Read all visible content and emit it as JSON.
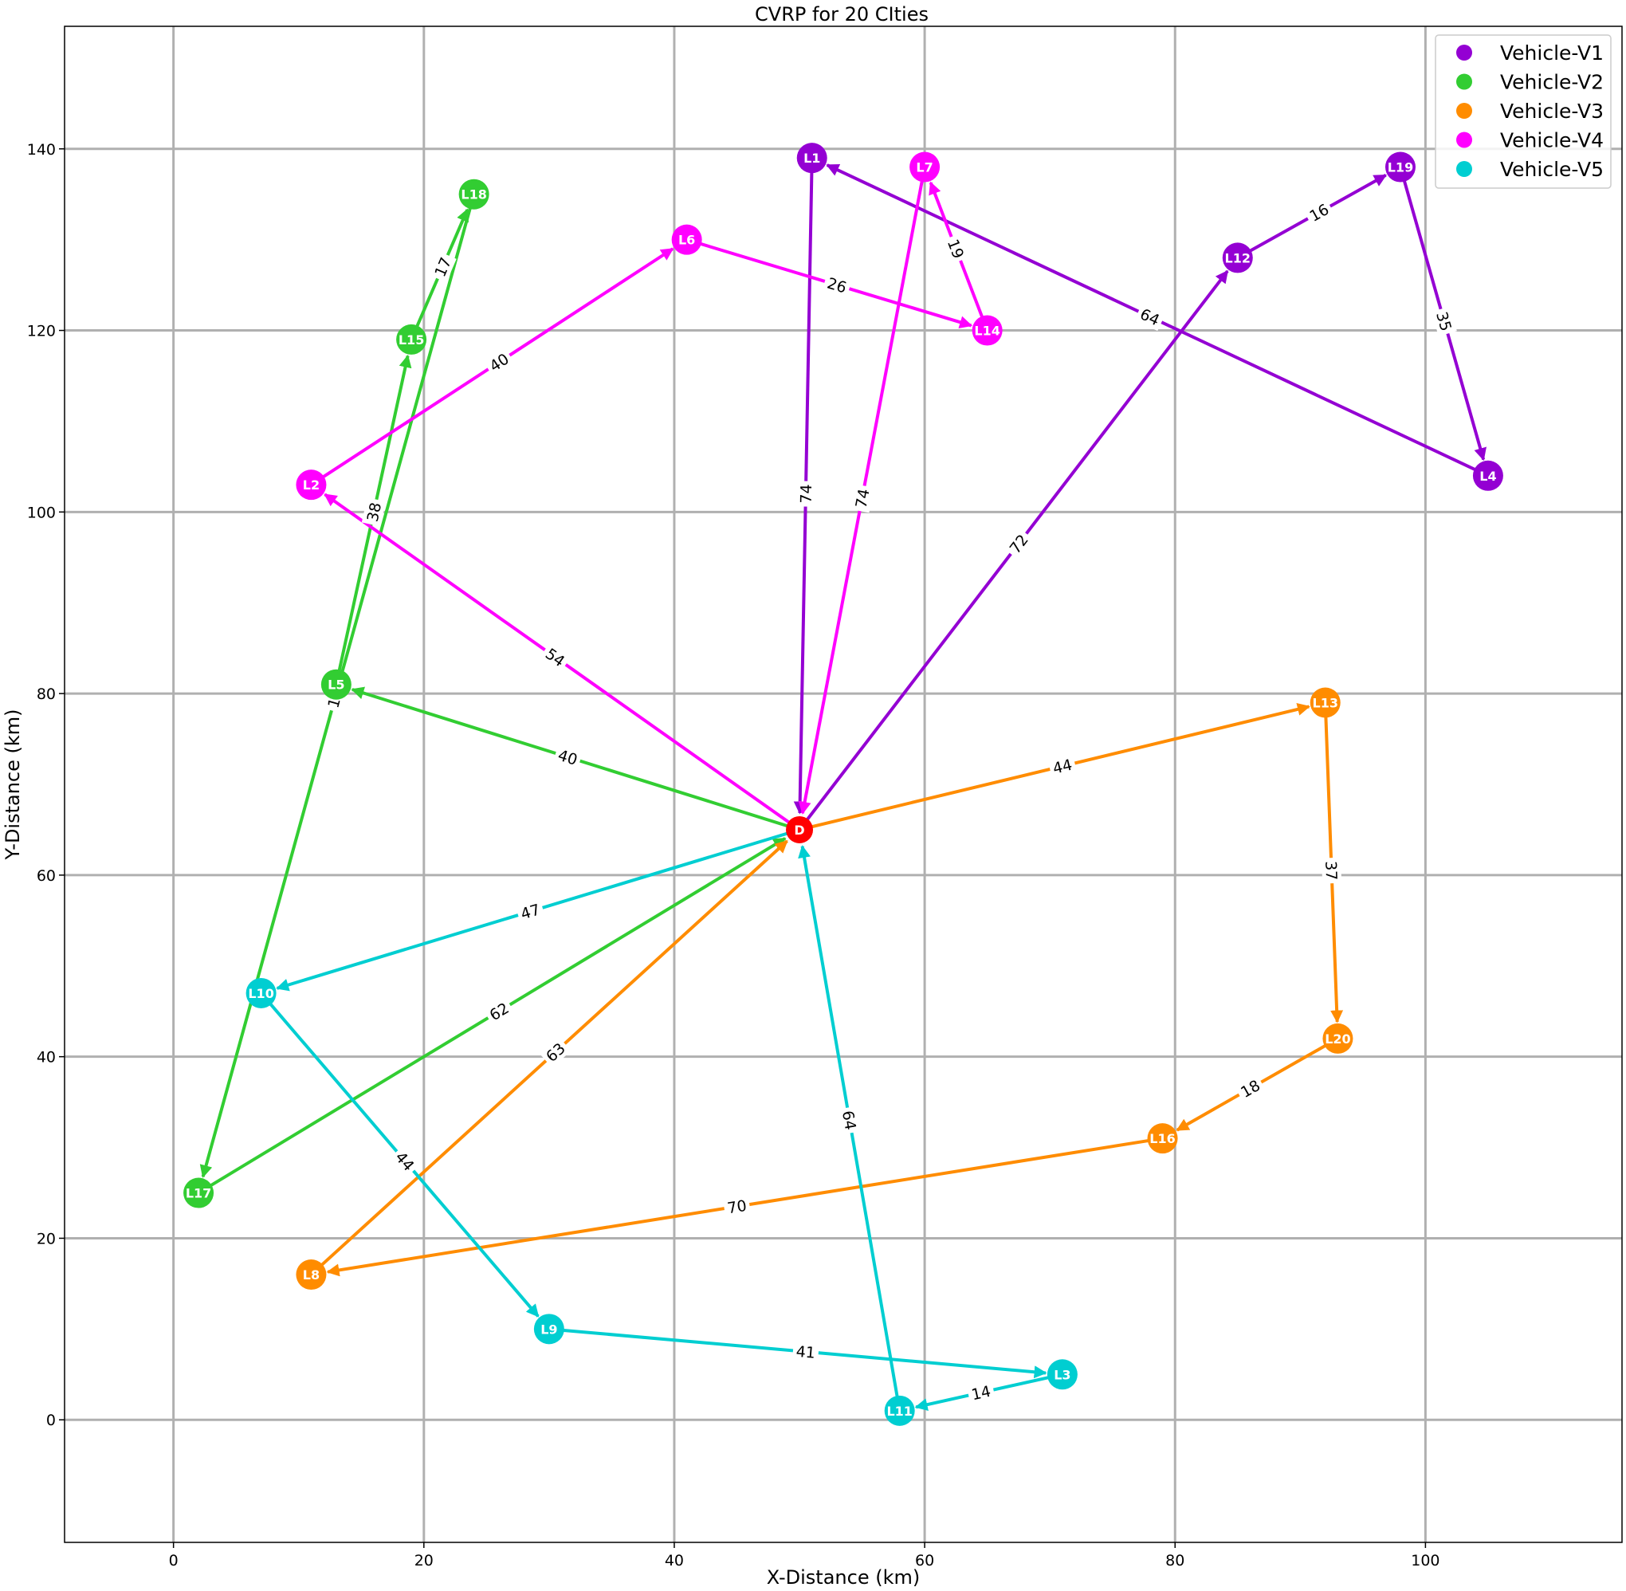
{
  "chart_data": {
    "type": "network",
    "title": "CVRP for 20 CIties",
    "xlabel": "X-Distance (km)",
    "ylabel": "Y-Distance (km)",
    "xlim": [
      -8.7,
      115.7
    ],
    "ylim": [
      -13.5,
      153.5
    ],
    "xticks": [
      0,
      20,
      40,
      60,
      80,
      100
    ],
    "yticks": [
      0,
      20,
      40,
      60,
      80,
      100,
      120,
      140
    ],
    "grid": true,
    "legend_position": "top-right",
    "depot": {
      "label": "D",
      "x": 50,
      "y": 65,
      "color": "#ff0000"
    },
    "vehicles": [
      {
        "name": "Vehicle-V1",
        "color": "#9400d3",
        "stops": [
          {
            "label": "L1",
            "x": 51,
            "y": 139
          },
          {
            "label": "L19",
            "x": 98,
            "y": 138
          },
          {
            "label": "L12",
            "x": 85,
            "y": 128
          },
          {
            "label": "L4",
            "x": 105,
            "y": 104
          }
        ],
        "edges": [
          {
            "from": "D",
            "to": "L12",
            "label": "72"
          },
          {
            "from": "L12",
            "to": "L19",
            "label": "16"
          },
          {
            "from": "L19",
            "to": "L4",
            "label": "35"
          },
          {
            "from": "L4",
            "to": "L1",
            "label": "64"
          },
          {
            "from": "L1",
            "to": "D",
            "label": "74"
          }
        ]
      },
      {
        "name": "Vehicle-V2",
        "color": "#32cd32",
        "stops": [
          {
            "label": "L18",
            "x": 24,
            "y": 135
          },
          {
            "label": "L15",
            "x": 19,
            "y": 119
          },
          {
            "label": "L5",
            "x": 13,
            "y": 81
          },
          {
            "label": "L17",
            "x": 2,
            "y": 25
          }
        ],
        "edges": [
          {
            "from": "D",
            "to": "L5",
            "label": "40"
          },
          {
            "from": "L5",
            "to": "L15",
            "label": "38"
          },
          {
            "from": "L15",
            "to": "L18",
            "label": "17"
          },
          {
            "from": "L18",
            "to": "L17",
            "label": "112"
          },
          {
            "from": "L17",
            "to": "D",
            "label": "62"
          }
        ]
      },
      {
        "name": "Vehicle-V3",
        "color": "#ff8c00",
        "stops": [
          {
            "label": "L13",
            "x": 92,
            "y": 79
          },
          {
            "label": "L20",
            "x": 93,
            "y": 42
          },
          {
            "label": "L16",
            "x": 79,
            "y": 31
          },
          {
            "label": "L8",
            "x": 11,
            "y": 16
          }
        ],
        "edges": [
          {
            "from": "D",
            "to": "L13",
            "label": "44"
          },
          {
            "from": "L13",
            "to": "L20",
            "label": "37"
          },
          {
            "from": "L20",
            "to": "L16",
            "label": "18"
          },
          {
            "from": "L16",
            "to": "L8",
            "label": "70"
          },
          {
            "from": "L8",
            "to": "D",
            "label": "63"
          }
        ]
      },
      {
        "name": "Vehicle-V4",
        "color": "#ff00ff",
        "stops": [
          {
            "label": "L7",
            "x": 60,
            "y": 138
          },
          {
            "label": "L6",
            "x": 41,
            "y": 130
          },
          {
            "label": "L14",
            "x": 65,
            "y": 120
          },
          {
            "label": "L2",
            "x": 11,
            "y": 103
          }
        ],
        "edges": [
          {
            "from": "D",
            "to": "L2",
            "label": "54"
          },
          {
            "from": "L2",
            "to": "L6",
            "label": "40"
          },
          {
            "from": "L6",
            "to": "L14",
            "label": "26"
          },
          {
            "from": "L14",
            "to": "L7",
            "label": "19"
          },
          {
            "from": "L7",
            "to": "D",
            "label": "74"
          }
        ]
      },
      {
        "name": "Vehicle-V5",
        "color": "#00ced1",
        "stops": [
          {
            "label": "L10",
            "x": 7,
            "y": 47
          },
          {
            "label": "L9",
            "x": 30,
            "y": 10
          },
          {
            "label": "L3",
            "x": 71,
            "y": 5
          },
          {
            "label": "L11",
            "x": 58,
            "y": 1
          }
        ],
        "edges": [
          {
            "from": "D",
            "to": "L10",
            "label": "47"
          },
          {
            "from": "L10",
            "to": "L9",
            "label": "44"
          },
          {
            "from": "L9",
            "to": "L3",
            "label": "41"
          },
          {
            "from": "L3",
            "to": "L11",
            "label": "14"
          },
          {
            "from": "L11",
            "to": "D",
            "label": "64"
          }
        ]
      }
    ]
  }
}
